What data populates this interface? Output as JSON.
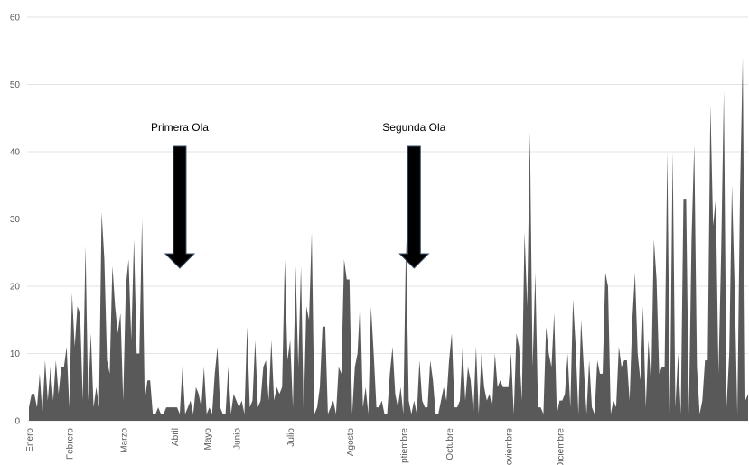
{
  "chart_data": {
    "type": "area",
    "title": "",
    "xlabel": "",
    "ylabel": "",
    "ylim": [
      0,
      60
    ],
    "yticks": [
      0,
      10,
      20,
      30,
      40,
      50,
      60
    ],
    "grid": true,
    "legend": "none",
    "fill_color": "#595959",
    "arrow_color": "#000000",
    "months": [
      "Enero",
      "Febrero",
      "Marzo",
      "Abril",
      "Mayo",
      "Junio",
      "Julio",
      "Agosto",
      "ptiembre",
      "Octubre",
      "oviembre",
      "Diciembre"
    ],
    "month_start_index": [
      0,
      15,
      35,
      54,
      66,
      77,
      97,
      119,
      139,
      156,
      178,
      197
    ],
    "series": [
      {
        "values": [
          2,
          4,
          4,
          2,
          7,
          1,
          9,
          3,
          8,
          3,
          9,
          4,
          8,
          8,
          11,
          2,
          19,
          11,
          17,
          16,
          3,
          26,
          3,
          13,
          2,
          5,
          2,
          31,
          24,
          9,
          7,
          23,
          17,
          13,
          16,
          3,
          20,
          24,
          12,
          27,
          10,
          10,
          30,
          3,
          6,
          6,
          1,
          1,
          2,
          1,
          1,
          2,
          2,
          2,
          2,
          2,
          1,
          8,
          1,
          2,
          3,
          1,
          5,
          4,
          2,
          8,
          1,
          2,
          1,
          7,
          11,
          2,
          1,
          1,
          8,
          1,
          4,
          3,
          2,
          3,
          1,
          14,
          2,
          3,
          12,
          2,
          3,
          8,
          9,
          3,
          12,
          3,
          5,
          4,
          5,
          24,
          9,
          12,
          2,
          23,
          8,
          23,
          1,
          17,
          15,
          28,
          1,
          2,
          5,
          14,
          14,
          1,
          2,
          3,
          1,
          8,
          7,
          24,
          21,
          21,
          1,
          8,
          10,
          18,
          2,
          5,
          1,
          17,
          10,
          2,
          2,
          3,
          1,
          1,
          7,
          11,
          4,
          2,
          5,
          1,
          27,
          3,
          1,
          3,
          1,
          9,
          3,
          2,
          2,
          9,
          6,
          1,
          1,
          3,
          5,
          3,
          9,
          13,
          2,
          2,
          3,
          11,
          3,
          8,
          6,
          1,
          11,
          1,
          10,
          5,
          3,
          4,
          2,
          10,
          5,
          6,
          5,
          5,
          5,
          10,
          1,
          13,
          11,
          3,
          28,
          17,
          43,
          8,
          22,
          2,
          2,
          1,
          14,
          10,
          8,
          16,
          1,
          3,
          3,
          4,
          10,
          2,
          18,
          11,
          1,
          15,
          8,
          1,
          9,
          2,
          1,
          9,
          7,
          7,
          22,
          20,
          1,
          3,
          2,
          11,
          8,
          9,
          9,
          3,
          15,
          22,
          10,
          6,
          17,
          2,
          12,
          5,
          27,
          21,
          7,
          8,
          8,
          40,
          1,
          40,
          2,
          10,
          1,
          33,
          33,
          1,
          27,
          41,
          8,
          1,
          3,
          9,
          9,
          47,
          29,
          33,
          7,
          25,
          49,
          2,
          10,
          35,
          20,
          1,
          34,
          54,
          3,
          4
        ]
      }
    ],
    "annotations": [
      {
        "text": "Primera Ola",
        "at_index": 56
      },
      {
        "text": "Segunda Ola",
        "at_index": 143
      }
    ]
  }
}
